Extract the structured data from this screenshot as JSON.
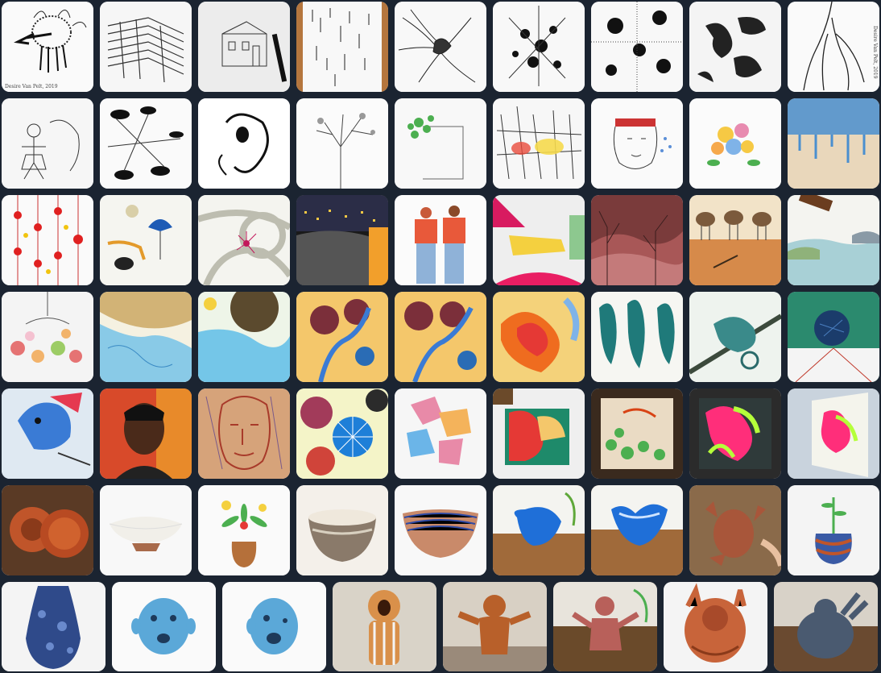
{
  "gallery": {
    "watermarks": {
      "tile_1": "Desire Van Pelt, 2019",
      "tile_9": "Desire Van Pelt, 2019"
    },
    "rows": [
      [
        "ink creature",
        "ink ladders",
        "house sketch with pen",
        "ink lines on wood",
        "ink roots",
        "ink splatter",
        "ink dots",
        "ink blots",
        "ink tentacles"
      ],
      [
        "ink girl",
        "ink mushrooms",
        "ink face",
        "ink tree",
        "green plant door",
        "yellow forest",
        "crowned man",
        "flower bouquet",
        "blue drip"
      ],
      [
        "red stars",
        "blue umbrella",
        "red ink bloom",
        "night city",
        "two figures",
        "yellow room",
        "pink mountains",
        "birds on soil",
        "sea landscape"
      ],
      [
        "chandelier",
        "blue yellow wash",
        "sunflower wash",
        "flowers on blue",
        "flowers on blue 2",
        "orange coral",
        "teal seahorses",
        "teal chameleon",
        "blue urchin"
      ],
      [
        "bird portrait",
        "man portrait",
        "line face",
        "citrus slices",
        "geometric blocks",
        "painted canvas",
        "bubble canvas",
        "neon canvas",
        "neon canvas side"
      ],
      [
        "clay bowls",
        "white bowl",
        "vase with flowers",
        "speckled bowl",
        "striped bowl",
        "blue pinch pot",
        "blue pinch pot 2",
        "clay hands",
        "planter pot"
      ],
      [
        "blue vase",
        "blue face",
        "blue face 2",
        "screaming figure",
        "clay figure",
        "pink figure",
        "clay bear",
        "grey creature"
      ]
    ]
  }
}
